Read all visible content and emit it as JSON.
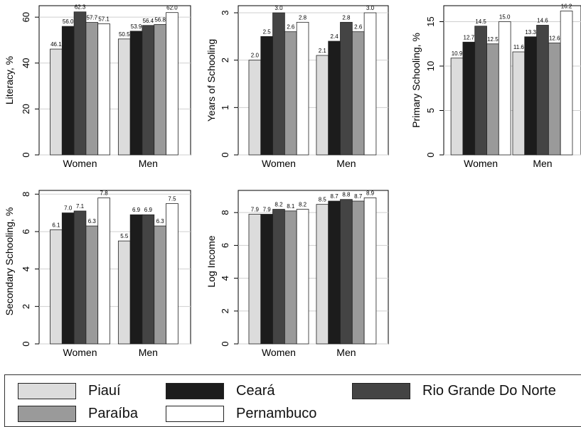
{
  "legend": {
    "items": [
      {
        "label": "Piauí",
        "color": "#dcdcdc"
      },
      {
        "label": "Ceará",
        "color": "#1c1c1c"
      },
      {
        "label": "Rio Grande Do Norte",
        "color": "#444444"
      },
      {
        "label": "Paraíba",
        "color": "#9a9a9a"
      },
      {
        "label": "Pernambuco",
        "color": "#ffffff"
      }
    ]
  },
  "chart_data": [
    {
      "type": "bar",
      "ylabel": "Literacy, %",
      "ylim": [
        0,
        65
      ],
      "yticks": [
        "0",
        "20",
        "40",
        "60"
      ],
      "categories": [
        "Women",
        "Men"
      ],
      "series": [
        {
          "name": "Piauí",
          "values": [
            46.1,
            50.5
          ],
          "labels": [
            "46.1",
            "50.5"
          ]
        },
        {
          "name": "Ceará",
          "values": [
            56.0,
            53.9
          ],
          "labels": [
            "56.0",
            "53.9"
          ]
        },
        {
          "name": "Rio Grande Do Norte",
          "values": [
            62.3,
            56.4
          ],
          "labels": [
            "62.3",
            "56.4"
          ]
        },
        {
          "name": "Paraíba",
          "values": [
            57.7,
            56.8
          ],
          "labels": [
            "57.7",
            "56.8"
          ]
        },
        {
          "name": "Pernambuco",
          "values": [
            57.1,
            62.0
          ],
          "labels": [
            "57.1",
            "62.0"
          ]
        }
      ]
    },
    {
      "type": "bar",
      "ylabel": "Years of Schooling",
      "ylim": [
        0,
        3.15
      ],
      "yticks": [
        "0",
        "1",
        "2",
        "3"
      ],
      "categories": [
        "Women",
        "Men"
      ],
      "series": [
        {
          "name": "Piauí",
          "values": [
            2.0,
            2.1
          ],
          "labels": [
            "2.0",
            "2.1"
          ]
        },
        {
          "name": "Ceará",
          "values": [
            2.5,
            2.4
          ],
          "labels": [
            "2.5",
            "2.4"
          ]
        },
        {
          "name": "Rio Grande Do Norte",
          "values": [
            3.0,
            2.8
          ],
          "labels": [
            "3.0",
            "2.8"
          ]
        },
        {
          "name": "Paraíba",
          "values": [
            2.6,
            2.6
          ],
          "labels": [
            "2.6",
            "2.6"
          ]
        },
        {
          "name": "Pernambuco",
          "values": [
            2.8,
            3.0
          ],
          "labels": [
            "2.8",
            "3.0"
          ]
        }
      ]
    },
    {
      "type": "bar",
      "ylabel": "Primary Schooling, %",
      "ylim": [
        0,
        16.8
      ],
      "yticks": [
        "0",
        "5",
        "10",
        "15"
      ],
      "categories": [
        "Women",
        "Men"
      ],
      "series": [
        {
          "name": "Piauí",
          "values": [
            10.9,
            11.6
          ],
          "labels": [
            "10.9",
            "11.6"
          ]
        },
        {
          "name": "Ceará",
          "values": [
            12.7,
            13.3
          ],
          "labels": [
            "12.7",
            "13.3"
          ]
        },
        {
          "name": "Rio Grande Do Norte",
          "values": [
            14.5,
            14.6
          ],
          "labels": [
            "14.5",
            "14.6"
          ]
        },
        {
          "name": "Paraíba",
          "values": [
            12.5,
            12.6
          ],
          "labels": [
            "12.5",
            "12.6"
          ]
        },
        {
          "name": "Pernambuco",
          "values": [
            15.0,
            16.2
          ],
          "labels": [
            "15.0",
            "16.2"
          ]
        }
      ]
    },
    {
      "type": "bar",
      "ylabel": "Secondary Schooling, %",
      "ylim": [
        0,
        8.2
      ],
      "yticks": [
        "0",
        "2",
        "4",
        "6",
        "8"
      ],
      "categories": [
        "Women",
        "Men"
      ],
      "series": [
        {
          "name": "Piauí",
          "values": [
            6.1,
            5.5
          ],
          "labels": [
            "6.1",
            "5.5"
          ]
        },
        {
          "name": "Ceará",
          "values": [
            7.0,
            6.9
          ],
          "labels": [
            "7.0",
            "6.9"
          ]
        },
        {
          "name": "Rio Grande Do Norte",
          "values": [
            7.1,
            6.9
          ],
          "labels": [
            "7.1",
            "6.9"
          ]
        },
        {
          "name": "Paraíba",
          "values": [
            6.3,
            6.3
          ],
          "labels": [
            "6.3",
            "6.3"
          ]
        },
        {
          "name": "Pernambuco",
          "values": [
            7.8,
            7.5
          ],
          "labels": [
            "7.8",
            "7.5"
          ]
        }
      ]
    },
    {
      "type": "bar",
      "ylabel": "Log Income",
      "ylim": [
        0,
        9.35
      ],
      "yticks": [
        "0",
        "2",
        "4",
        "6",
        "8"
      ],
      "categories": [
        "Women",
        "Men"
      ],
      "series": [
        {
          "name": "Piauí",
          "values": [
            7.9,
            8.5
          ],
          "labels": [
            "7.9",
            "8.5"
          ]
        },
        {
          "name": "Ceará",
          "values": [
            7.9,
            8.7
          ],
          "labels": [
            "7.9",
            "8.7"
          ]
        },
        {
          "name": "Rio Grande Do Norte",
          "values": [
            8.2,
            8.8
          ],
          "labels": [
            "8.2",
            "8.8"
          ]
        },
        {
          "name": "Paraíba",
          "values": [
            8.1,
            8.7
          ],
          "labels": [
            "8.1",
            "8.7"
          ]
        },
        {
          "name": "Pernambuco",
          "values": [
            8.2,
            8.9
          ],
          "labels": [
            "8.2",
            "8.9"
          ]
        }
      ]
    }
  ]
}
